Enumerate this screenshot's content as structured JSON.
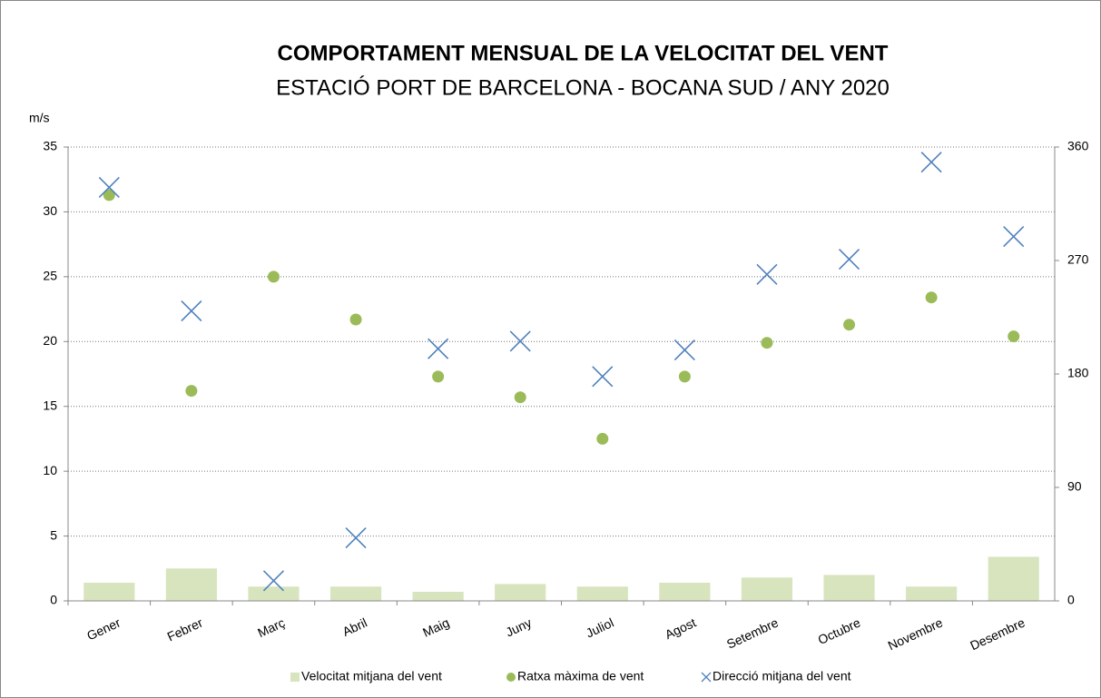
{
  "chart_data": {
    "type": "bar",
    "title": "COMPORTAMENT MENSUAL DE LA VELOCITAT DEL VENT",
    "subtitle": "ESTACIÓ PORT DE BARCELONA - BOCANA SUD / ANY 2020",
    "y_label": "m/s",
    "categories": [
      "Gener",
      "Febrer",
      "Març",
      "Abril",
      "Maig",
      "Juny",
      "Juliol",
      "Agost",
      "Setembre",
      "Octubre",
      "Novembre",
      "Desembre"
    ],
    "series": [
      {
        "name": "Velocitat mitjana del vent",
        "type": "bar",
        "color": "#d7e4bd",
        "values": [
          1.4,
          2.5,
          1.1,
          1.1,
          0.7,
          1.3,
          1.1,
          1.4,
          1.8,
          2.0,
          1.1,
          3.4
        ]
      },
      {
        "name": "Ratxa màxima de vent",
        "type": "scatter",
        "marker": "circle",
        "color": "#9bbb59",
        "values": [
          31.3,
          16.2,
          25.0,
          21.7,
          17.3,
          15.7,
          12.5,
          17.3,
          19.9,
          21.3,
          23.4,
          20.4
        ]
      },
      {
        "name": "Direcció mitjana del vent",
        "type": "scatter",
        "marker": "x",
        "color": "#4f81bd",
        "axis": "y2",
        "values": [
          328,
          230,
          16,
          50,
          200,
          206,
          178,
          199,
          259,
          271,
          348,
          289
        ]
      }
    ],
    "ylim": [
      0,
      35
    ],
    "yticks": [
      0,
      5,
      10,
      15,
      20,
      25,
      30,
      35
    ],
    "y2lim": [
      0,
      360
    ],
    "y2ticks": [
      0,
      90,
      180,
      270,
      360
    ],
    "grid": true,
    "legend": "bottom"
  }
}
